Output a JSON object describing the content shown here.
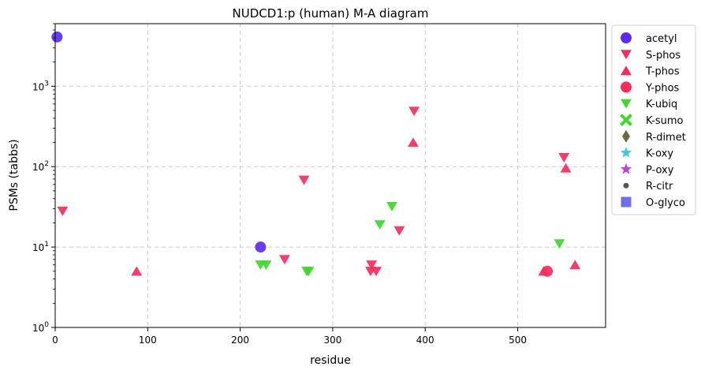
{
  "chart_data": {
    "type": "scatter",
    "title": "NUDCD1:p (human) M-A diagram",
    "xlabel": "residue",
    "ylabel": "PSMs (tabbs)",
    "xlim": [
      0,
      595
    ],
    "ylim": [
      1,
      6000
    ],
    "yscale": "log",
    "xticks": [
      0,
      100,
      200,
      300,
      400,
      500
    ],
    "yticks": [
      {
        "value": 1,
        "base": "10",
        "exp": "0"
      },
      {
        "value": 10,
        "base": "10",
        "exp": "1"
      },
      {
        "value": 100,
        "base": "10",
        "exp": "2"
      },
      {
        "value": 1000,
        "base": "10",
        "exp": "3"
      }
    ],
    "grid": true,
    "legend_position": "outside-right",
    "series": [
      {
        "name": "acetyl",
        "marker": "circle",
        "color": "#5b2cf5",
        "points": [
          [
            2,
            4100
          ],
          [
            222,
            10
          ]
        ]
      },
      {
        "name": "S-phos",
        "marker": "triangle-down",
        "color": "#f72b5e",
        "points": [
          [
            8,
            28
          ],
          [
            248,
            7
          ],
          [
            269,
            68
          ],
          [
            342,
            6
          ],
          [
            341,
            5
          ],
          [
            347,
            5
          ],
          [
            372,
            16
          ],
          [
            388,
            490
          ],
          [
            550,
            130
          ]
        ]
      },
      {
        "name": "T-phos",
        "marker": "triangle-up",
        "color": "#f72b5e",
        "points": [
          [
            88,
            5
          ],
          [
            387,
            200
          ],
          [
            528,
            5
          ],
          [
            552,
            96
          ],
          [
            562,
            6
          ]
        ]
      },
      {
        "name": "Y-phos",
        "marker": "circle",
        "color": "#f72b5e",
        "points": [
          [
            532,
            5
          ]
        ]
      },
      {
        "name": "K-ubiq",
        "marker": "triangle-down",
        "color": "#40d630",
        "points": [
          [
            222,
            6
          ],
          [
            228,
            6
          ],
          [
            272,
            5
          ],
          [
            274,
            5
          ],
          [
            351,
            19
          ],
          [
            364,
            32
          ],
          [
            545,
            11
          ]
        ]
      },
      {
        "name": "K-sumo",
        "marker": "x",
        "color": "#40d630",
        "points": []
      },
      {
        "name": "R-dimet",
        "marker": "diamond",
        "color": "#6b6b47",
        "points": []
      },
      {
        "name": "K-oxy",
        "marker": "star",
        "color": "#3fc9d6",
        "points": []
      },
      {
        "name": "P-oxy",
        "marker": "star",
        "color": "#c142d6",
        "points": []
      },
      {
        "name": "R-citr",
        "marker": "small-circle",
        "color": "#555555",
        "points": []
      },
      {
        "name": "O-glyco",
        "marker": "square",
        "color": "#6e6ee8",
        "points": []
      }
    ]
  }
}
